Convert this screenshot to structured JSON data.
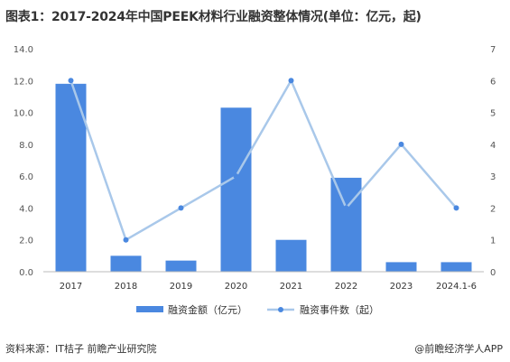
{
  "title": "图表1：2017-2024年中国PEEK材料行业融资整体情况(单位：亿元，起)",
  "source": "资料来源：IT桔子 前瞻产业研究院",
  "brand": "@前瞻经济学人APP",
  "chart_data": {
    "type": "bar",
    "categories": [
      "2017",
      "2018",
      "2019",
      "2020",
      "2021",
      "2022",
      "2023",
      "2024.1-6"
    ],
    "series": [
      {
        "name": "融资金额（亿元）",
        "type": "bar",
        "axis": "left",
        "values": [
          11.8,
          1.0,
          0.7,
          10.3,
          2.0,
          5.9,
          0.6,
          0.6
        ],
        "color": "#4a88e0"
      },
      {
        "name": "融资事件数（起）",
        "type": "line",
        "axis": "right",
        "values": [
          6,
          1,
          2,
          3,
          6,
          2,
          4,
          2
        ],
        "color": "#a9c8ea"
      }
    ],
    "ylim": [
      0,
      14
    ],
    "y2lim": [
      0,
      7
    ],
    "yticks": [
      "0.0",
      "2.0",
      "4.0",
      "6.0",
      "8.0",
      "10.0",
      "12.0",
      "14.0"
    ],
    "y2ticks": [
      "0",
      "1",
      "2",
      "3",
      "4",
      "5",
      "6",
      "7"
    ],
    "grid": false,
    "legend": "bottom"
  }
}
